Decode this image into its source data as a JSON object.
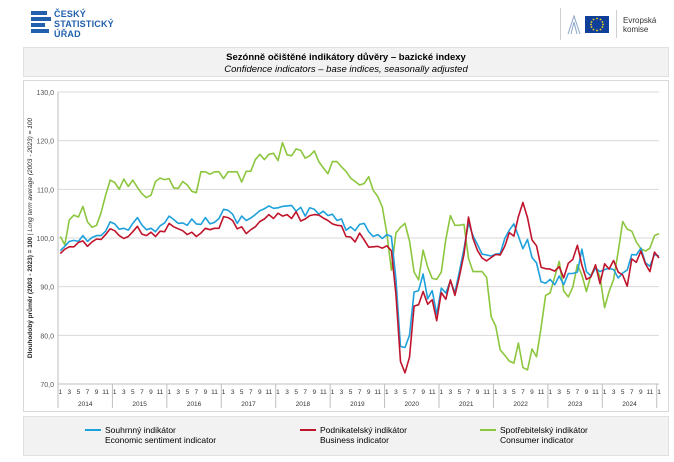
{
  "header": {
    "czso_lines": [
      "ČESKÝ",
      "STATISTICKÝ",
      "ÚŘAD"
    ],
    "ec_lines": [
      "Evropská",
      "komise"
    ],
    "czso_color": "#2160ad",
    "eu_blue": "#0f3f99",
    "eu_star": "#ffd617"
  },
  "title": {
    "cs": "Sezónně očištěné indikátory důvěry – bazické indexy",
    "en": "Confidence indicators – base indices, seasonally adjusted"
  },
  "chart_data": {
    "type": "line",
    "ylabel_cs": "Dlouhodobý průměr (2003 - 2023) = 100",
    "ylabel_en": " | Long term average (2003 - 2023) = 100",
    "ylim": [
      70,
      130
    ],
    "yticks": [
      "70,0",
      "80,0",
      "90,0",
      "100,0",
      "110,0",
      "120,0",
      "130,0"
    ],
    "month_labels": [
      "1",
      "3",
      "5",
      "7",
      "9",
      "11"
    ],
    "years": [
      "2014",
      "2015",
      "2016",
      "2017",
      "2018",
      "2019",
      "2020",
      "2021",
      "2022",
      "2023",
      "2024"
    ],
    "grid": true,
    "series": [
      {
        "name": "Souhrnný indikátor",
        "name_en": "Economic sentiment indicator",
        "color": "#1ea0dc",
        "values": [
          97.4,
          98.3,
          99.3,
          99.5,
          99.3,
          100.5,
          99.3,
          100.1,
          100.5,
          100.5,
          101.4,
          103.3,
          102.9,
          101.8,
          102.0,
          101.6,
          103.0,
          104.2,
          102.7,
          101.7,
          102.0,
          101.3,
          102.5,
          103.1,
          104.5,
          103.8,
          103.0,
          103.1,
          102.6,
          103.9,
          102.9,
          102.8,
          104.2,
          102.9,
          103.2,
          104.0,
          105.9,
          105.7,
          104.9,
          103.0,
          104.5,
          103.6,
          104.1,
          104.8,
          105.6,
          106.0,
          106.6,
          106.1,
          106.2,
          106.5,
          106.6,
          106.7,
          105.5,
          106.3,
          104.5,
          106.2,
          105.9,
          104.9,
          105.5,
          104.6,
          104.9,
          103.6,
          103.9,
          101.6,
          102.3,
          101.5,
          102.8,
          103.0,
          101.3,
          100.3,
          100.7,
          99.9,
          100.7,
          100.3,
          91.6,
          77.7,
          77.5,
          80.0,
          88.9,
          89.2,
          92.6,
          87.5,
          89.2,
          84.3,
          89.7,
          88.7,
          91.2,
          88.8,
          93.1,
          97.8,
          103.1,
          100.5,
          98.6,
          96.7,
          96.5,
          96.3,
          96.7,
          96.8,
          99.9,
          101.6,
          102.9,
          100.4,
          97.8,
          99.7,
          96.0,
          94.9,
          91.0,
          90.7,
          91.5,
          90.4,
          92.2,
          90.4,
          92.7,
          92.7,
          93.0,
          97.7,
          93.1,
          92.2,
          93.8,
          93.1,
          93.5,
          93.8,
          93.5,
          91.8,
          92.8,
          93.4,
          96.6,
          96.5,
          97.9,
          94.9,
          94.2,
          96.6,
          96.3
        ]
      },
      {
        "name": "Podnikatelský indikátor",
        "name_en": "Business indicator",
        "color": "#c0142c",
        "values": [
          96.8,
          97.7,
          98.2,
          98.2,
          99.1,
          99.4,
          98.3,
          99.2,
          99.8,
          99.7,
          100.7,
          101.9,
          101.5,
          100.5,
          99.9,
          100.3,
          101.3,
          102.4,
          100.8,
          100.5,
          101.2,
          100.3,
          101.4,
          101.3,
          103.0,
          102.3,
          101.9,
          101.5,
          100.7,
          101.2,
          100.3,
          101.0,
          102.0,
          101.7,
          102.0,
          102.0,
          104.4,
          104.2,
          103.6,
          101.9,
          102.3,
          100.9,
          101.7,
          102.3,
          103.4,
          103.9,
          104.8,
          104.0,
          105.1,
          104.5,
          104.8,
          104.0,
          105.4,
          103.5,
          103.9,
          104.6,
          104.8,
          104.7,
          104.1,
          103.6,
          102.9,
          102.6,
          102.5,
          100.3,
          100.2,
          99.2,
          101.0,
          99.6,
          98.1,
          98.2,
          98.3,
          97.9,
          98.4,
          97.4,
          88.5,
          74.6,
          72.3,
          75.5,
          86.0,
          86.3,
          89.0,
          86.4,
          87.3,
          83.0,
          88.8,
          87.4,
          91.4,
          88.2,
          92.1,
          96.7,
          104.3,
          99.9,
          97.4,
          95.9,
          95.3,
          96.0,
          96.6,
          96.5,
          98.3,
          101.1,
          100.4,
          104.4,
          107.3,
          104.2,
          99.6,
          98.4,
          94.0,
          93.7,
          93.6,
          93.2,
          94.1,
          91.8,
          94.8,
          95.6,
          98.5,
          94.4,
          91.5,
          92.0,
          94.5,
          90.6,
          94.7,
          93.6,
          95.4,
          93.0,
          92.4,
          90.1,
          95.7,
          95.0,
          97.3,
          94.7,
          93.1,
          97.1,
          95.9
        ]
      },
      {
        "name": "Spotřebitelský indikátor",
        "name_en": "Consumer indicator",
        "color": "#8cc63f",
        "values": [
          100.3,
          98.6,
          103.7,
          104.7,
          104.3,
          106.5,
          103.3,
          102.2,
          102.6,
          105.2,
          108.8,
          111.9,
          111.4,
          110.0,
          112.1,
          110.6,
          111.9,
          110.4,
          109.1,
          108.3,
          108.8,
          111.6,
          112.3,
          112.0,
          112.2,
          110.3,
          110.2,
          111.6,
          110.9,
          109.6,
          109.3,
          113.6,
          113.6,
          113.1,
          113.6,
          113.6,
          112.2,
          113.6,
          113.6,
          113.6,
          111.5,
          113.7,
          113.7,
          116.1,
          117.2,
          116.1,
          117.2,
          117.4,
          115.9,
          119.6,
          117.1,
          116.9,
          118.3,
          118.0,
          116.4,
          116.9,
          117.9,
          115.7,
          114.4,
          113.2,
          115.7,
          115.7,
          114.6,
          113.7,
          112.3,
          111.6,
          110.9,
          111.2,
          112.6,
          109.8,
          108.5,
          106.4,
          101.0,
          93.4,
          101.0,
          102.2,
          103.0,
          99.4,
          93.0,
          91.4,
          97.5,
          94.0,
          91.7,
          91.5,
          93.0,
          99.7,
          104.6,
          102.6,
          102.6,
          102.8,
          95.8,
          93.1,
          93.1,
          93.1,
          91.9,
          83.8,
          81.9,
          77.0,
          75.9,
          74.7,
          74.3,
          78.4,
          73.4,
          72.9,
          77.2,
          75.6,
          81.6,
          88.2,
          88.7,
          92.0,
          95.2,
          89.1,
          87.9,
          89.9,
          94.5,
          92.4,
          89.0,
          92.4,
          94.2,
          92.0,
          85.7,
          89.0,
          91.5,
          97.2,
          103.4,
          101.8,
          101.4,
          99.2,
          97.8,
          97.3,
          97.9,
          100.5,
          100.9
        ]
      }
    ]
  }
}
